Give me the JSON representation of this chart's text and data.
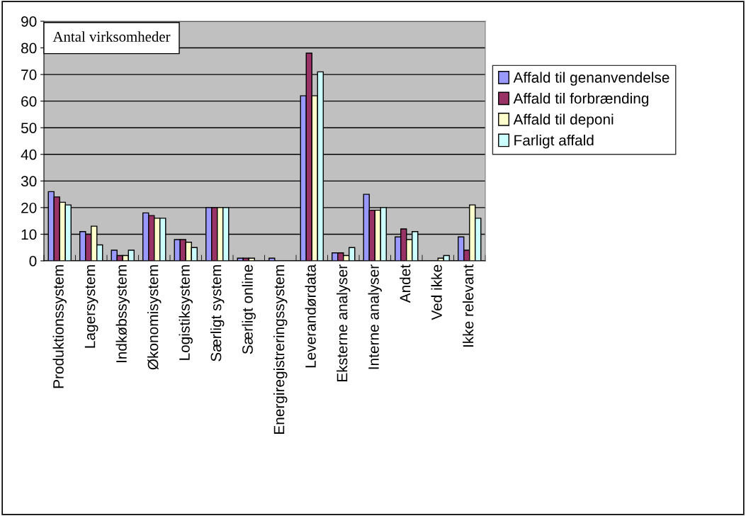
{
  "chart_data": {
    "type": "bar",
    "title": "Antal virksomheder",
    "categories": [
      "Produktionssystem",
      "Lagersystem",
      "Indkøbssystem",
      "Økonomisystem",
      "Logistiksystem",
      "Særligt system",
      "Særligt online",
      "Energiregistreringssystem",
      "Leverandørdata",
      "Eksterne analyser",
      "Interne analyser",
      "Andet",
      "Ved ikke",
      "Ikke relevant"
    ],
    "series": [
      {
        "name": "Affald til genanvendelse",
        "color": "#9999ff",
        "values": [
          26,
          11,
          4,
          18,
          8,
          20,
          1,
          1,
          62,
          3,
          25,
          9,
          0,
          9
        ]
      },
      {
        "name": "Affald til forbrænding",
        "color": "#993366",
        "values": [
          24,
          10,
          2,
          17,
          8,
          20,
          1,
          0,
          78,
          3,
          19,
          12,
          0,
          4
        ]
      },
      {
        "name": "Affald til deponi",
        "color": "#ffffcc",
        "values": [
          22,
          13,
          2,
          16,
          7,
          20,
          1,
          0,
          62,
          2,
          19,
          8,
          1,
          21
        ]
      },
      {
        "name": "Farligt affald",
        "color": "#ccffff",
        "values": [
          21,
          6,
          4,
          16,
          5,
          20,
          0,
          0,
          71,
          5,
          20,
          11,
          2,
          16
        ]
      }
    ],
    "ylim": [
      0,
      90
    ],
    "yticks": [
      0,
      10,
      20,
      30,
      40,
      50,
      60,
      70,
      80,
      90
    ],
    "grid": "y",
    "legend": "right"
  }
}
